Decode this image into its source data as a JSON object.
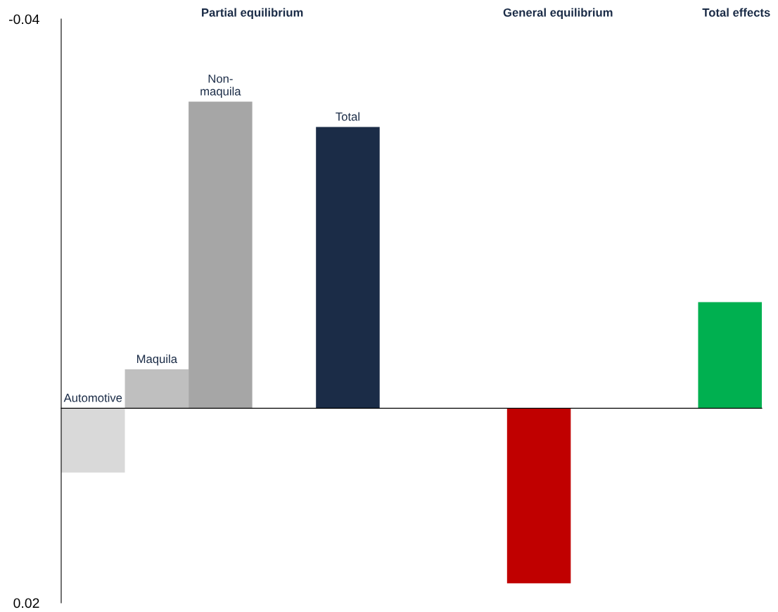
{
  "chart_data": {
    "type": "bar",
    "categories": [
      "Automotive",
      "Maquila",
      "Non-\nmaquila",
      null,
      "Total",
      null,
      null,
      null,
      null,
      null,
      null
    ],
    "values": [
      0.0066,
      -0.004,
      -0.0315,
      null,
      -0.0289,
      null,
      null,
      0.018,
      null,
      null,
      -0.0109
    ],
    "colors": [
      "#d9d9d9",
      "#bfbfbf",
      "#a6a6a6",
      "#ffffff",
      "#1b2c47",
      "#ffffff",
      "#ffffff",
      "#c00000",
      "#ffffff",
      "#ffffff",
      "#00b050"
    ],
    "ylim": [
      0.02,
      -0.04
    ],
    "yticks": [
      -0.04,
      0.02
    ],
    "annotations": [
      "Partial equilibrium",
      "General equilibrium",
      "Total effects"
    ],
    "grid": false,
    "legend": false
  }
}
